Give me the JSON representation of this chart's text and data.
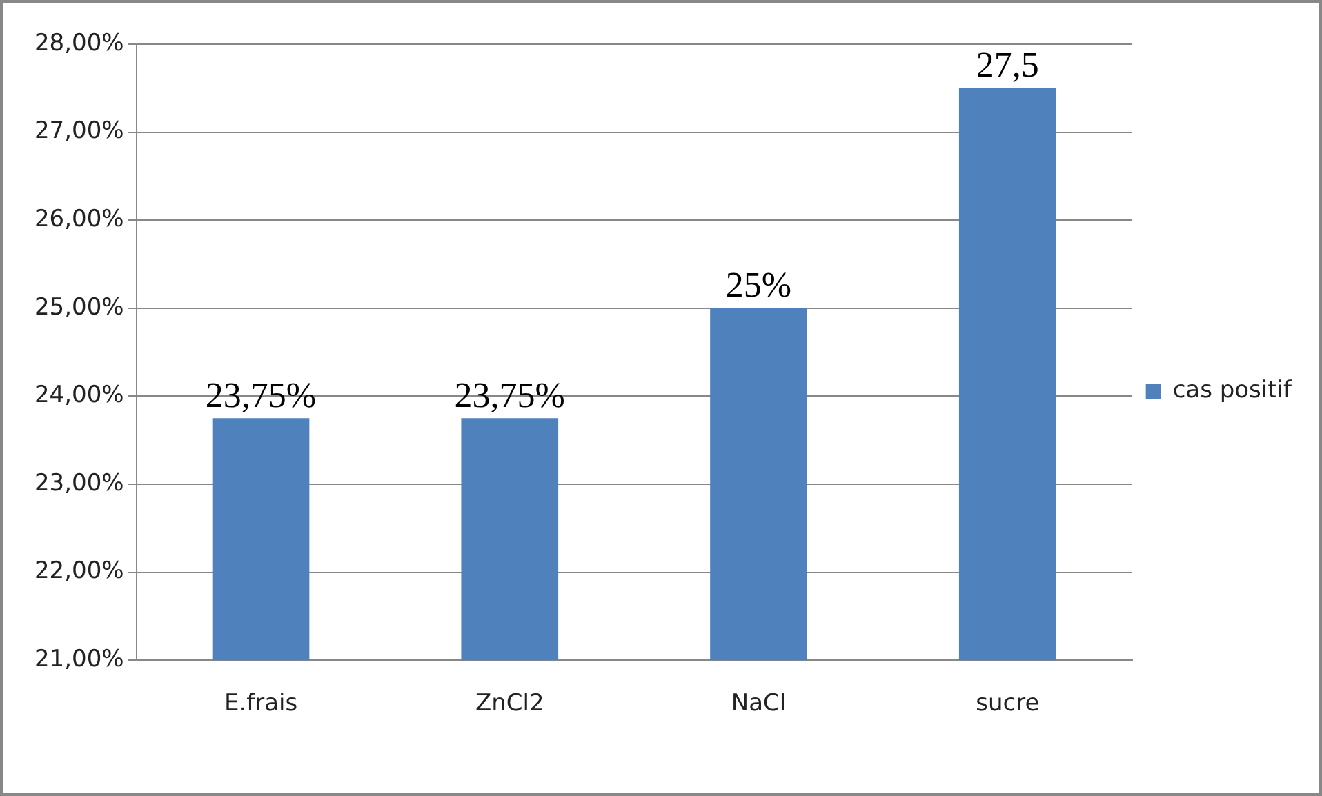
{
  "chart_data": {
    "type": "bar",
    "categories": [
      "E.frais",
      "ZnCl2",
      "NaCl",
      "sucre"
    ],
    "series": [
      {
        "name": "cas positif",
        "color": "#4f81bd",
        "values": [
          23.75,
          23.75,
          25,
          27.5
        ],
        "value_labels": [
          "23,75%",
          "23,75%",
          "25%",
          "27,5"
        ]
      }
    ],
    "ylim": [
      21,
      28
    ],
    "yticks": [
      {
        "value": 21,
        "label": "21,00%"
      },
      {
        "value": 22,
        "label": "22,00%"
      },
      {
        "value": 23,
        "label": "23,00%"
      },
      {
        "value": 24,
        "label": "24,00%"
      },
      {
        "value": 25,
        "label": "25,00%"
      },
      {
        "value": 26,
        "label": "26,00%"
      },
      {
        "value": 27,
        "label": "27,00%"
      },
      {
        "value": 28,
        "label": "28,00%"
      }
    ],
    "grid": "y",
    "legend": "right"
  }
}
